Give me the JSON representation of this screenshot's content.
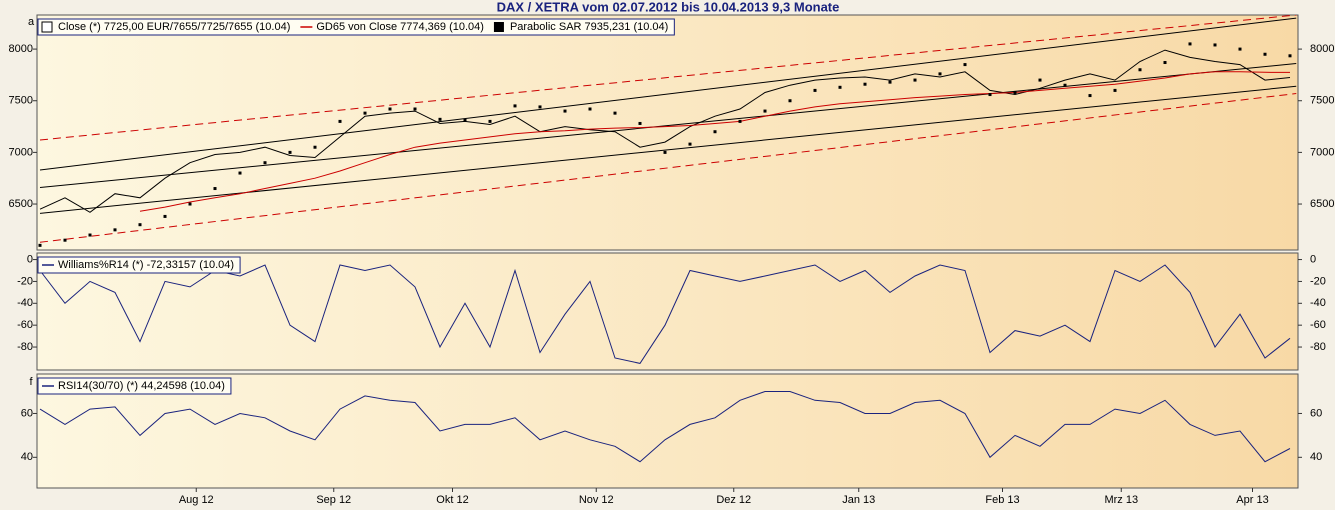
{
  "chart_data": [
    {
      "type": "line",
      "title": "DAX / XETRA vom 02.07.2012 bis 10.04.2013 9,3 Monate",
      "panel_letter": "a",
      "xlim": [
        0,
        200
      ],
      "ylim": [
        6055,
        8330
      ],
      "yticks": [
        6500,
        7000,
        7500,
        8000
      ],
      "x": [
        0,
        4,
        8,
        12,
        16,
        20,
        24,
        28,
        32,
        36,
        40,
        44,
        48,
        52,
        56,
        60,
        64,
        68,
        72,
        76,
        80,
        84,
        88,
        92,
        96,
        100,
        104,
        108,
        112,
        116,
        120,
        124,
        128,
        132,
        136,
        140,
        144,
        148,
        152,
        156,
        160,
        164,
        168,
        172,
        176,
        180,
        184,
        188,
        192,
        196,
        200
      ],
      "series": [
        {
          "name": "Close (*) 7725,00 EUR/7655/7725/7655 (10.04)",
          "color": "#000000",
          "style": "line",
          "values": [
            6450,
            6560,
            6420,
            6600,
            6560,
            6750,
            6900,
            6980,
            7000,
            7050,
            6970,
            6950,
            7150,
            7350,
            7380,
            7400,
            7280,
            7300,
            7270,
            7350,
            7200,
            7250,
            7220,
            7200,
            7050,
            7100,
            7250,
            7350,
            7420,
            7580,
            7650,
            7700,
            7720,
            7730,
            7700,
            7760,
            7730,
            7780,
            7600,
            7560,
            7620,
            7700,
            7760,
            7700,
            7880,
            7990,
            7920,
            7880,
            7850,
            7700,
            7725
          ]
        },
        {
          "name": "GD65 von Close 7774,369 (10.04)",
          "color": "#cc0000",
          "style": "line",
          "values": [
            null,
            null,
            null,
            null,
            6430,
            6470,
            6520,
            6560,
            6600,
            6650,
            6700,
            6750,
            6820,
            6900,
            6980,
            7050,
            7090,
            7120,
            7150,
            7180,
            7200,
            7210,
            7225,
            7235,
            7240,
            7250,
            7260,
            7280,
            7300,
            7350,
            7400,
            7440,
            7470,
            7490,
            7510,
            7530,
            7545,
            7560,
            7570,
            7580,
            7600,
            7620,
            7640,
            7660,
            7690,
            7720,
            7760,
            7780,
            7780,
            7775,
            7774
          ]
        },
        {
          "name": "Parabolic SAR 7935,231 (10.04)",
          "color": "#000000",
          "style": "dots",
          "values": [
            6100,
            6150,
            6200,
            6250,
            6300,
            6380,
            6500,
            6650,
            6800,
            6900,
            7000,
            7050,
            7300,
            7380,
            7420,
            7420,
            7320,
            7310,
            7300,
            7450,
            7440,
            7400,
            7420,
            7380,
            7280,
            7000,
            7080,
            7200,
            7300,
            7400,
            7500,
            7600,
            7630,
            7660,
            7680,
            7700,
            7760,
            7850,
            7560,
            7580,
            7700,
            7650,
            7550,
            7600,
            7800,
            7870,
            8050,
            8040,
            8000,
            7950,
            7935
          ]
        }
      ],
      "channels": [
        {
          "color": "#000000",
          "dashed": false,
          "x": [
            0,
            201
          ],
          "values": [
            6830,
            8300
          ]
        },
        {
          "color": "#000000",
          "dashed": false,
          "x": [
            0,
            201
          ],
          "values": [
            6660,
            7860
          ]
        },
        {
          "color": "#000000",
          "dashed": false,
          "x": [
            0,
            201
          ],
          "values": [
            6410,
            7640
          ]
        },
        {
          "color": "#cc0000",
          "dashed": true,
          "x": [
            0,
            201
          ],
          "values": [
            7120,
            8330
          ]
        },
        {
          "color": "#cc0000",
          "dashed": true,
          "x": [
            0,
            201
          ],
          "values": [
            6130,
            7570
          ]
        }
      ]
    },
    {
      "type": "line",
      "xlim": [
        0,
        200
      ],
      "ylim": [
        -101,
        6
      ],
      "yticks": [
        0,
        -20,
        -40,
        -60,
        -80
      ],
      "x": [
        0,
        4,
        8,
        12,
        16,
        20,
        24,
        28,
        32,
        36,
        40,
        44,
        48,
        52,
        56,
        60,
        64,
        68,
        72,
        76,
        80,
        84,
        88,
        92,
        96,
        100,
        104,
        108,
        112,
        116,
        120,
        124,
        128,
        132,
        136,
        140,
        144,
        148,
        152,
        156,
        160,
        164,
        168,
        172,
        176,
        180,
        184,
        188,
        192,
        196,
        200
      ],
      "series": [
        {
          "name": "Williams%R14 (*) -72,33157 (10.04)",
          "color": "#1a237e",
          "style": "line",
          "values": [
            -10,
            -40,
            -20,
            -30,
            -75,
            -20,
            -25,
            -10,
            -15,
            -5,
            -60,
            -75,
            -5,
            -10,
            -5,
            -25,
            -80,
            -40,
            -80,
            -10,
            -85,
            -50,
            -20,
            -90,
            -95,
            -60,
            -10,
            -15,
            -20,
            -15,
            -10,
            -5,
            -20,
            -10,
            -30,
            -15,
            -5,
            -10,
            -85,
            -65,
            -70,
            -60,
            -75,
            -10,
            -20,
            -5,
            -30,
            -80,
            -50,
            -90,
            -72
          ]
        }
      ]
    },
    {
      "type": "line",
      "panel_letter": "f",
      "xlim": [
        0,
        200
      ],
      "ylim": [
        26,
        78
      ],
      "yticks": [
        40,
        60
      ],
      "x": [
        0,
        4,
        8,
        12,
        16,
        20,
        24,
        28,
        32,
        36,
        40,
        44,
        48,
        52,
        56,
        60,
        64,
        68,
        72,
        76,
        80,
        84,
        88,
        92,
        96,
        100,
        104,
        108,
        112,
        116,
        120,
        124,
        128,
        132,
        136,
        140,
        144,
        148,
        152,
        156,
        160,
        164,
        168,
        172,
        176,
        180,
        184,
        188,
        192,
        196,
        200
      ],
      "xticks": [
        {
          "value": 25,
          "label": "Aug 12"
        },
        {
          "value": 47,
          "label": "Sep 12"
        },
        {
          "value": 66,
          "label": "Okt 12"
        },
        {
          "value": 89,
          "label": "Nov 12"
        },
        {
          "value": 111,
          "label": "Dez 12"
        },
        {
          "value": 131,
          "label": "Jan 13"
        },
        {
          "value": 154,
          "label": "Feb 13"
        },
        {
          "value": 173,
          "label": "Mrz 13"
        },
        {
          "value": 194,
          "label": "Apr 13"
        }
      ],
      "series": [
        {
          "name": "RSI14(30/70) (*) 44,24598 (10.04)",
          "color": "#1a237e",
          "style": "line",
          "values": [
            62,
            55,
            62,
            63,
            50,
            60,
            62,
            55,
            60,
            58,
            52,
            48,
            62,
            68,
            66,
            65,
            52,
            55,
            55,
            58,
            48,
            52,
            48,
            45,
            38,
            48,
            55,
            58,
            66,
            70,
            70,
            66,
            65,
            60,
            60,
            65,
            66,
            60,
            40,
            50,
            45,
            55,
            55,
            62,
            60,
            66,
            55,
            50,
            52,
            38,
            44
          ]
        }
      ]
    }
  ]
}
